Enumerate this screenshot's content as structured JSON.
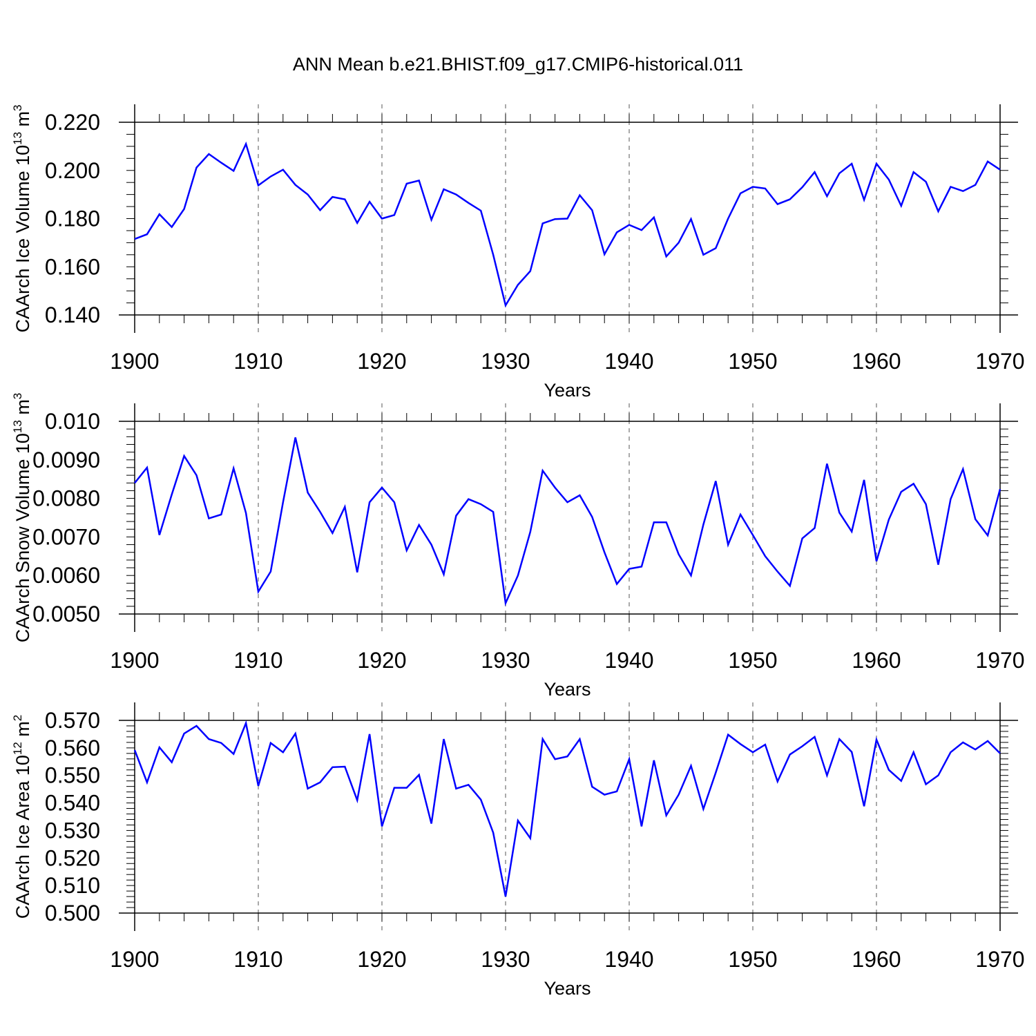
{
  "title": "ANN Mean b.e21.BHIST.f09_g17.CMIP6-historical.011",
  "chart_data": [
    {
      "type": "line",
      "title": "ANN Mean b.e21.BHIST.f09_g17.CMIP6-historical.011",
      "xlabel": "Years",
      "ylabel_base": "CAArch Ice Volume 10",
      "ylabel_exp": "13",
      "ylabel_unit": " m",
      "ylabel_unit_exp": "3",
      "xlim": [
        1900,
        1970
      ],
      "ylim": [
        0.14,
        0.22
      ],
      "yticks": [
        0.14,
        0.16,
        0.18,
        0.2,
        0.22
      ],
      "ytick_labels": [
        "0.140",
        "0.160",
        "0.180",
        "0.200",
        "0.220"
      ],
      "xticks": [
        1900,
        1910,
        1920,
        1930,
        1940,
        1950,
        1960,
        1970
      ],
      "xtick_labels": [
        "1900",
        "1910",
        "1920",
        "1930",
        "1940",
        "1950",
        "1960",
        "1970"
      ],
      "grid": "vertical-dashed",
      "line_color": "#0000ff",
      "x": [
        1900,
        1901,
        1902,
        1903,
        1904,
        1905,
        1906,
        1907,
        1908,
        1909,
        1910,
        1911,
        1912,
        1913,
        1914,
        1915,
        1916,
        1917,
        1918,
        1919,
        1920,
        1921,
        1922,
        1923,
        1924,
        1925,
        1926,
        1927,
        1928,
        1929,
        1930,
        1931,
        1932,
        1933,
        1934,
        1935,
        1936,
        1937,
        1938,
        1939,
        1940,
        1941,
        1942,
        1943,
        1944,
        1945,
        1946,
        1947,
        1948,
        1949,
        1950,
        1951,
        1952,
        1953,
        1954,
        1955,
        1956,
        1957,
        1958,
        1959,
        1960,
        1961,
        1962,
        1963,
        1964,
        1965,
        1966,
        1967,
        1968,
        1969,
        1970
      ],
      "values": [
        0.1715,
        0.1735,
        0.1818,
        0.1765,
        0.184,
        0.2012,
        0.2068,
        0.2032,
        0.1998,
        0.211,
        0.1938,
        0.1975,
        0.2003,
        0.194,
        0.19,
        0.1835,
        0.189,
        0.188,
        0.1782,
        0.187,
        0.18,
        0.1815,
        0.1945,
        0.1958,
        0.1795,
        0.1922,
        0.19,
        0.1865,
        0.1833,
        0.165,
        0.144,
        0.1525,
        0.1582,
        0.178,
        0.1798,
        0.18,
        0.1897,
        0.1835,
        0.1652,
        0.1743,
        0.1774,
        0.1752,
        0.1805,
        0.1643,
        0.17,
        0.1798,
        0.165,
        0.1677,
        0.18,
        0.1905,
        0.1932,
        0.1925,
        0.186,
        0.188,
        0.193,
        0.1993,
        0.1893,
        0.1988,
        0.2028,
        0.1878,
        0.2028,
        0.1962,
        0.1853,
        0.1993,
        0.1953,
        0.183,
        0.1932,
        0.1914,
        0.194,
        0.2037,
        0.2003
      ]
    },
    {
      "type": "line",
      "xlabel": "Years",
      "ylabel_base": "CAArch Snow Volume 10",
      "ylabel_exp": "13",
      "ylabel_unit": " m",
      "ylabel_unit_exp": "3",
      "xlim": [
        1900,
        1970
      ],
      "ylim": [
        0.005,
        0.01
      ],
      "yticks": [
        0.005,
        0.006,
        0.007,
        0.008,
        0.009,
        0.01
      ],
      "ytick_labels": [
        "0.0050",
        "0.0060",
        "0.0070",
        "0.0080",
        "0.0090",
        "0.010"
      ],
      "xticks": [
        1900,
        1910,
        1920,
        1930,
        1940,
        1950,
        1960,
        1970
      ],
      "xtick_labels": [
        "1900",
        "1910",
        "1920",
        "1930",
        "1940",
        "1950",
        "1960",
        "1970"
      ],
      "grid": "vertical-dashed",
      "line_color": "#0000ff",
      "x": [
        1900,
        1901,
        1902,
        1903,
        1904,
        1905,
        1906,
        1907,
        1908,
        1909,
        1910,
        1911,
        1912,
        1913,
        1914,
        1915,
        1916,
        1917,
        1918,
        1919,
        1920,
        1921,
        1922,
        1923,
        1924,
        1925,
        1926,
        1927,
        1928,
        1929,
        1930,
        1931,
        1932,
        1933,
        1934,
        1935,
        1936,
        1937,
        1938,
        1939,
        1940,
        1941,
        1942,
        1943,
        1944,
        1945,
        1946,
        1947,
        1948,
        1949,
        1950,
        1951,
        1952,
        1953,
        1954,
        1955,
        1956,
        1957,
        1958,
        1959,
        1960,
        1961,
        1962,
        1963,
        1964,
        1965,
        1966,
        1967,
        1968,
        1969,
        1970
      ],
      "values": [
        0.0084,
        0.0088,
        0.00705,
        0.0081,
        0.0091,
        0.0086,
        0.00748,
        0.00758,
        0.00878,
        0.00762,
        0.00558,
        0.0061,
        0.0079,
        0.00958,
        0.00815,
        0.00765,
        0.0071,
        0.00778,
        0.00608,
        0.0079,
        0.00828,
        0.0079,
        0.00665,
        0.00731,
        0.0068,
        0.00603,
        0.00755,
        0.00798,
        0.00785,
        0.00765,
        0.00528,
        0.006,
        0.00713,
        0.00872,
        0.00828,
        0.0079,
        0.00808,
        0.00752,
        0.0066,
        0.00578,
        0.00617,
        0.00623,
        0.00738,
        0.00738,
        0.00655,
        0.006,
        0.00732,
        0.00845,
        0.0068,
        0.00758,
        0.00705,
        0.0065,
        0.0061,
        0.00573,
        0.00696,
        0.00723,
        0.0089,
        0.00763,
        0.00714,
        0.00848,
        0.00637,
        0.00745,
        0.00817,
        0.00838,
        0.00785,
        0.00628,
        0.00798,
        0.00876,
        0.00746,
        0.00704,
        0.00824
      ]
    },
    {
      "type": "line",
      "xlabel": "Years",
      "ylabel_base": "CAArch Ice Area 10",
      "ylabel_exp": "12",
      "ylabel_unit": " m",
      "ylabel_unit_exp": "2",
      "xlim": [
        1900,
        1970
      ],
      "ylim": [
        0.5,
        0.57
      ],
      "yticks": [
        0.5,
        0.51,
        0.52,
        0.53,
        0.54,
        0.55,
        0.56,
        0.57
      ],
      "ytick_labels": [
        "0.500",
        "0.510",
        "0.520",
        "0.530",
        "0.540",
        "0.550",
        "0.560",
        "0.570"
      ],
      "xticks": [
        1900,
        1910,
        1920,
        1930,
        1940,
        1950,
        1960,
        1970
      ],
      "xtick_labels": [
        "1900",
        "1910",
        "1920",
        "1930",
        "1940",
        "1950",
        "1960",
        "1970"
      ],
      "grid": "vertical-dashed",
      "line_color": "#0000ff",
      "x": [
        1900,
        1901,
        1902,
        1903,
        1904,
        1905,
        1906,
        1907,
        1908,
        1909,
        1910,
        1911,
        1912,
        1913,
        1914,
        1915,
        1916,
        1917,
        1918,
        1919,
        1920,
        1921,
        1922,
        1923,
        1924,
        1925,
        1926,
        1927,
        1928,
        1929,
        1930,
        1931,
        1932,
        1933,
        1934,
        1935,
        1936,
        1937,
        1938,
        1939,
        1940,
        1941,
        1942,
        1943,
        1944,
        1945,
        1946,
        1947,
        1948,
        1949,
        1950,
        1951,
        1952,
        1953,
        1954,
        1955,
        1956,
        1957,
        1958,
        1959,
        1960,
        1961,
        1962,
        1963,
        1964,
        1965,
        1966,
        1967,
        1968,
        1969,
        1970
      ],
      "values": [
        0.5592,
        0.5475,
        0.5602,
        0.5548,
        0.5652,
        0.568,
        0.5632,
        0.5618,
        0.5578,
        0.569,
        0.5462,
        0.5618,
        0.5584,
        0.5652,
        0.5452,
        0.5475,
        0.553,
        0.5532,
        0.541,
        0.565,
        0.5315,
        0.5455,
        0.5455,
        0.5502,
        0.5325,
        0.5632,
        0.5452,
        0.5466,
        0.5412,
        0.5292,
        0.506,
        0.5336,
        0.5272,
        0.5632,
        0.5559,
        0.5569,
        0.5632,
        0.5459,
        0.543,
        0.5442,
        0.5559,
        0.5315,
        0.5555,
        0.5355,
        0.543,
        0.5535,
        0.5378,
        0.551,
        0.5648,
        0.5614,
        0.5584,
        0.5612,
        0.5478,
        0.5576,
        0.5606,
        0.564,
        0.55,
        0.5632,
        0.5585,
        0.5388,
        0.563,
        0.552,
        0.548,
        0.5584,
        0.5468,
        0.55,
        0.5584,
        0.562,
        0.5594,
        0.5625,
        0.558
      ]
    }
  ]
}
